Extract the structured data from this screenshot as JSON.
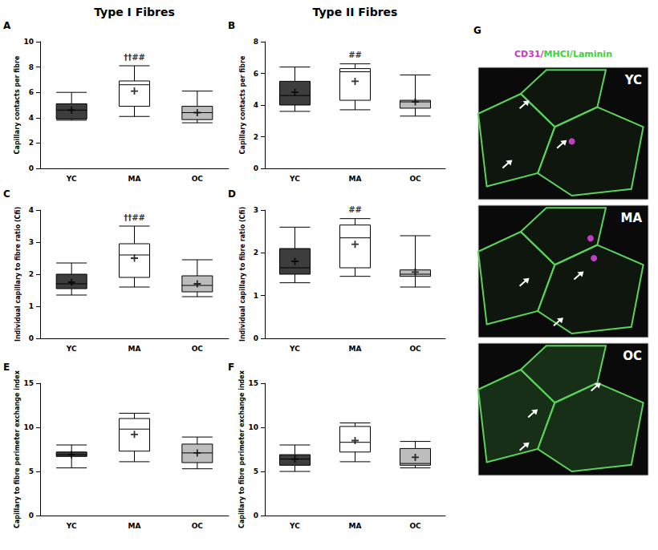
{
  "column_titles": [
    "Type I Fibres",
    "Type II Fibres"
  ],
  "chart_data": [
    {
      "type": "boxplot",
      "letter": "A",
      "y_label": "Capillary contacts per fibre",
      "categories": [
        "YC",
        "MA",
        "OC"
      ],
      "boxes": [
        [
          3.8,
          3.9,
          4.6,
          5.1,
          6.0
        ],
        [
          4.1,
          4.9,
          6.6,
          6.9,
          8.1
        ],
        [
          3.6,
          3.85,
          4.4,
          4.9,
          6.1
        ]
      ],
      "means": [
        4.6,
        6.1,
        4.4
      ],
      "colors": [
        "#3d3d3d",
        "#ffffff",
        "#bdbdbd"
      ],
      "marker": "plus",
      "ylim": [
        0,
        10
      ],
      "yticks": [
        0,
        2,
        4,
        6,
        8,
        10
      ],
      "grid": false,
      "annotations": [
        {
          "category": "MA",
          "text": "††##"
        }
      ]
    },
    {
      "type": "boxplot",
      "letter": "B",
      "y_label": "Capillary contacts per fibre",
      "categories": [
        "YC",
        "MA",
        "OC"
      ],
      "boxes": [
        [
          3.6,
          4.0,
          4.6,
          5.5,
          6.4
        ],
        [
          3.7,
          4.3,
          6.1,
          6.3,
          6.6
        ],
        [
          3.3,
          3.8,
          4.2,
          4.3,
          5.9
        ]
      ],
      "means": [
        4.8,
        5.5,
        4.2
      ],
      "colors": [
        "#3d3d3d",
        "#ffffff",
        "#bdbdbd"
      ],
      "marker": "plus",
      "ylim": [
        0,
        8
      ],
      "yticks": [
        0,
        2,
        4,
        6,
        8
      ],
      "grid": false,
      "annotations": [
        {
          "category": "MA",
          "text": "##"
        }
      ]
    },
    {
      "type": "boxplot",
      "letter": "C",
      "y_label": "Individual capillary to fibre ratio (Cfi)",
      "categories": [
        "YC",
        "MA",
        "OC"
      ],
      "boxes": [
        [
          1.35,
          1.55,
          1.7,
          2.0,
          2.35
        ],
        [
          1.6,
          1.9,
          2.6,
          2.95,
          3.5
        ],
        [
          1.3,
          1.45,
          1.65,
          1.95,
          2.45
        ]
      ],
      "means": [
        1.75,
        2.5,
        1.7
      ],
      "colors": [
        "#3d3d3d",
        "#ffffff",
        "#bdbdbd"
      ],
      "marker": "plus",
      "ylim": [
        0,
        4
      ],
      "yticks": [
        0,
        1,
        2,
        3,
        4
      ],
      "grid": false,
      "annotations": [
        {
          "category": "MA",
          "text": "††##"
        }
      ]
    },
    {
      "type": "boxplot",
      "letter": "D",
      "y_label": "Individual capillary to fibre ratio (Cfi)",
      "categories": [
        "YC",
        "MA",
        "OC"
      ],
      "boxes": [
        [
          1.3,
          1.5,
          1.65,
          2.1,
          2.6
        ],
        [
          1.45,
          1.65,
          2.35,
          2.65,
          2.8
        ],
        [
          1.2,
          1.45,
          1.5,
          1.6,
          2.4
        ]
      ],
      "means": [
        1.8,
        2.2,
        1.55
      ],
      "colors": [
        "#3d3d3d",
        "#ffffff",
        "#bdbdbd"
      ],
      "marker": "plus",
      "ylim": [
        0,
        3
      ],
      "yticks": [
        0,
        1,
        2,
        3
      ],
      "grid": false,
      "annotations": [
        {
          "category": "MA",
          "text": "##"
        }
      ]
    },
    {
      "type": "boxplot",
      "letter": "E",
      "y_label": "Capillary to fibre perimeter exchange index",
      "categories": [
        "YC",
        "MA",
        "OC"
      ],
      "boxes": [
        [
          5.4,
          6.7,
          6.9,
          7.2,
          8.0
        ],
        [
          6.1,
          7.3,
          9.8,
          11.0,
          11.6
        ],
        [
          5.3,
          6.0,
          7.1,
          8.1,
          8.9
        ]
      ],
      "means": [
        6.9,
        9.2,
        7.1
      ],
      "colors": [
        "#3d3d3d",
        "#ffffff",
        "#bdbdbd"
      ],
      "marker": "plus",
      "ylim": [
        0,
        15
      ],
      "yticks": [
        0,
        5,
        10,
        15
      ],
      "grid": false,
      "annotations": []
    },
    {
      "type": "boxplot",
      "letter": "F",
      "y_label": "Capillary to fibre perimeter exchange index",
      "categories": [
        "YC",
        "MA",
        "OC"
      ],
      "boxes": [
        [
          5.0,
          5.7,
          6.4,
          6.9,
          8.0
        ],
        [
          6.1,
          7.2,
          8.3,
          10.1,
          10.5
        ],
        [
          5.4,
          5.7,
          5.9,
          7.6,
          8.4
        ]
      ],
      "means": [
        6.4,
        8.5,
        6.6
      ],
      "colors": [
        "#3d3d3d",
        "#ffffff",
        "#bdbdbd"
      ],
      "marker": "plus",
      "ylim": [
        0,
        15
      ],
      "yticks": [
        0,
        5,
        10,
        15
      ],
      "grid": false,
      "annotations": []
    }
  ],
  "image_panel": {
    "letter": "G",
    "title": "CD31/MHCI/Laminin",
    "title_colors": [
      "#c43cc4",
      "#3fd13f",
      "#3fd13f"
    ],
    "images": [
      {
        "label": "YC"
      },
      {
        "label": "MA"
      },
      {
        "label": "OC"
      }
    ]
  }
}
